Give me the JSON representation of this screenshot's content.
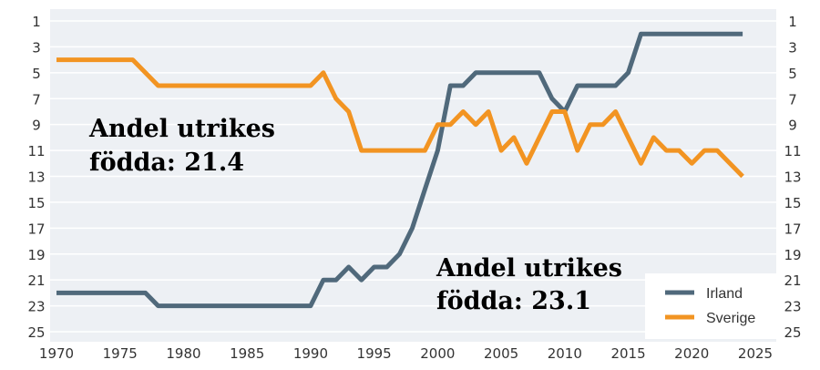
{
  "chart_data": {
    "type": "line",
    "title": "",
    "xlabel": "",
    "ylabel": "",
    "xlim": [
      1970,
      2025
    ],
    "ylim": [
      1,
      25
    ],
    "y_inverted": true,
    "x_ticks": [
      1970,
      1975,
      1980,
      1985,
      1990,
      1995,
      2000,
      2005,
      2010,
      2015,
      2020,
      2025
    ],
    "y_ticks": [
      1,
      3,
      5,
      7,
      9,
      11,
      13,
      15,
      17,
      19,
      21,
      23,
      25
    ],
    "grid": "horizontal",
    "background": "#edf0f4",
    "legend_position": "bottom-right",
    "series": [
      {
        "name": "Irland",
        "color": "#50697b",
        "x": [
          1970,
          1971,
          1972,
          1973,
          1974,
          1975,
          1976,
          1977,
          1978,
          1979,
          1980,
          1981,
          1982,
          1983,
          1984,
          1985,
          1986,
          1987,
          1988,
          1989,
          1990,
          1991,
          1992,
          1993,
          1994,
          1995,
          1996,
          1997,
          1998,
          1999,
          2000,
          2001,
          2002,
          2003,
          2004,
          2005,
          2006,
          2007,
          2008,
          2009,
          2010,
          2011,
          2012,
          2013,
          2014,
          2015,
          2016,
          2017,
          2018,
          2019,
          2020,
          2021,
          2022,
          2023,
          2024
        ],
        "values": [
          22,
          22,
          22,
          22,
          22,
          22,
          22,
          22,
          23,
          23,
          23,
          23,
          23,
          23,
          23,
          23,
          23,
          23,
          23,
          23,
          23,
          21,
          21,
          20,
          21,
          20,
          20,
          19,
          17,
          14,
          11,
          6,
          6,
          5,
          5,
          5,
          5,
          5,
          5,
          7,
          8,
          6,
          6,
          6,
          6,
          5,
          2,
          2,
          2,
          2,
          2,
          2,
          2,
          2,
          2
        ]
      },
      {
        "name": "Sverige",
        "color": "#f29422",
        "x": [
          1970,
          1971,
          1972,
          1973,
          1974,
          1975,
          1976,
          1977,
          1978,
          1979,
          1980,
          1981,
          1982,
          1983,
          1984,
          1985,
          1986,
          1987,
          1988,
          1989,
          1990,
          1991,
          1992,
          1993,
          1994,
          1995,
          1996,
          1997,
          1998,
          1999,
          2000,
          2001,
          2002,
          2003,
          2004,
          2005,
          2006,
          2007,
          2008,
          2009,
          2010,
          2011,
          2012,
          2013,
          2014,
          2015,
          2016,
          2017,
          2018,
          2019,
          2020,
          2021,
          2022,
          2023,
          2024
        ],
        "values": [
          4,
          4,
          4,
          4,
          4,
          4,
          4,
          5,
          6,
          6,
          6,
          6,
          6,
          6,
          6,
          6,
          6,
          6,
          6,
          6,
          6,
          5,
          7,
          8,
          11,
          11,
          11,
          11,
          11,
          11,
          9,
          9,
          8,
          9,
          8,
          11,
          10,
          12,
          10,
          8,
          8,
          11,
          9,
          9,
          8,
          10,
          12,
          10,
          11,
          11,
          12,
          11,
          11,
          12,
          13
        ]
      }
    ],
    "annotations": [
      {
        "id": "sverige",
        "line1": "Andel utrikes",
        "line2": "födda: 21.4"
      },
      {
        "id": "irland",
        "line1": "Andel utrikes",
        "line2": "födda: 23.1"
      }
    ]
  }
}
